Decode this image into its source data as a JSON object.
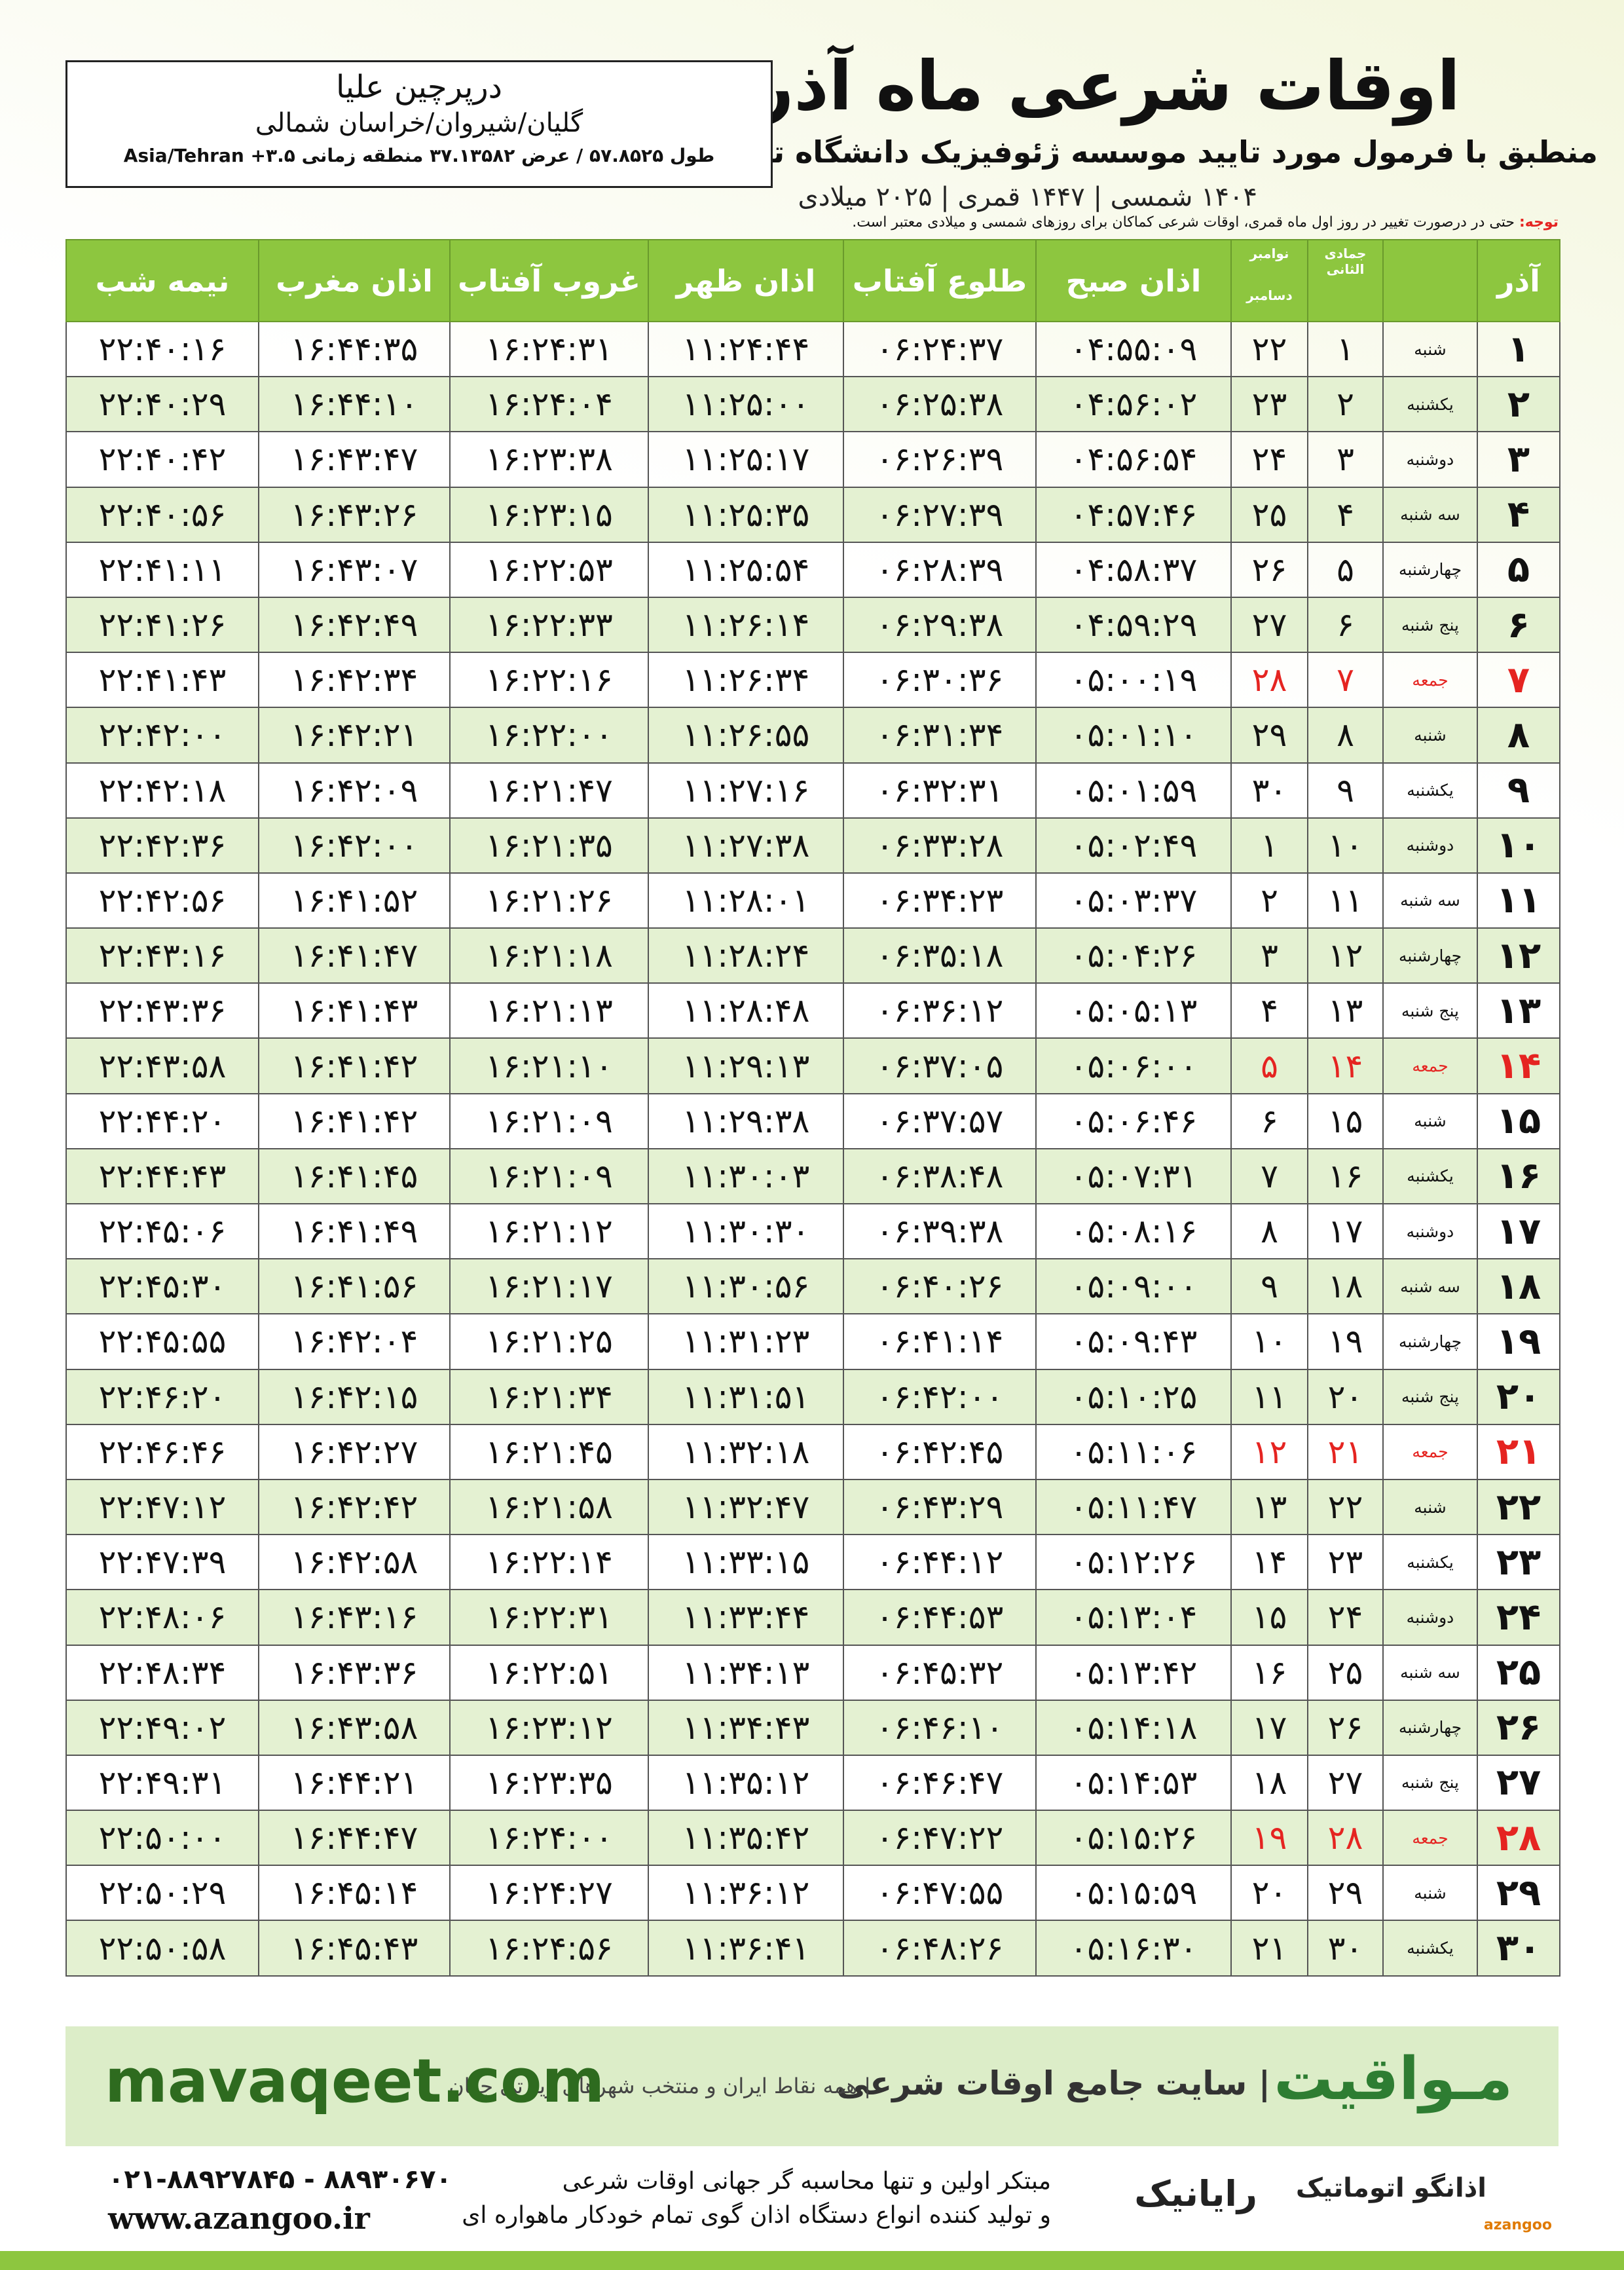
{
  "header": {
    "title": "اوقات شرعی ماه آذر",
    "subtitle": "منطبق با فرمول مورد تایید موسسه ژئوفیزیک دانشگاه تهران",
    "years": "۱۴۰۴ شمسی | ۱۴۴۷ قمری | ۲۰۲۵ میلادی"
  },
  "location": {
    "name": "درپرچین علیا",
    "region": "گلیان/شیروان/خراسان شمالی",
    "coords": "طول ۵۷.۸۵۲۵ / عرض ۳۷.۱۳۵۸۲ منطقه زمانی ۳.۵+ Asia/Tehran"
  },
  "note": {
    "label": "توجه:",
    "text": "حتی در درصورت تغییر در روز اول ماه قمری، اوقات شرعی کماکان برای روزهای شمسی و میلادی معتبر است."
  },
  "table": {
    "columns": {
      "day": "آذر",
      "qamari": "جمادی الثانی",
      "miladi": [
        "نوامبر",
        "دسامبر"
      ],
      "times": [
        "اذان صبح",
        "طلوع آفتاب",
        "اذان ظهر",
        "غروب آفتاب",
        "اذان مغرب",
        "نیمه شب"
      ]
    },
    "holiday_color": "#e52421",
    "holiday_rows": [
      6,
      13,
      20,
      27
    ],
    "rows": [
      [
        "۱",
        "شنبه",
        "۱",
        "۲۲",
        "۰۴:۵۵:۰۹",
        "۰۶:۲۴:۳۷",
        "۱۱:۲۴:۴۴",
        "۱۶:۲۴:۳۱",
        "۱۶:۴۴:۳۵",
        "۲۲:۴۰:۱۶"
      ],
      [
        "۲",
        "یکشنبه",
        "۲",
        "۲۳",
        "۰۴:۵۶:۰۲",
        "۰۶:۲۵:۳۸",
        "۱۱:۲۵:۰۰",
        "۱۶:۲۴:۰۴",
        "۱۶:۴۴:۱۰",
        "۲۲:۴۰:۲۹"
      ],
      [
        "۳",
        "دوشنبه",
        "۳",
        "۲۴",
        "۰۴:۵۶:۵۴",
        "۰۶:۲۶:۳۹",
        "۱۱:۲۵:۱۷",
        "۱۶:۲۳:۳۸",
        "۱۶:۴۳:۴۷",
        "۲۲:۴۰:۴۲"
      ],
      [
        "۴",
        "سه شنبه",
        "۴",
        "۲۵",
        "۰۴:۵۷:۴۶",
        "۰۶:۲۷:۳۹",
        "۱۱:۲۵:۳۵",
        "۱۶:۲۳:۱۵",
        "۱۶:۴۳:۲۶",
        "۲۲:۴۰:۵۶"
      ],
      [
        "۵",
        "چهارشنبه",
        "۵",
        "۲۶",
        "۰۴:۵۸:۳۷",
        "۰۶:۲۸:۳۹",
        "۱۱:۲۵:۵۴",
        "۱۶:۲۲:۵۳",
        "۱۶:۴۳:۰۷",
        "۲۲:۴۱:۱۱"
      ],
      [
        "۶",
        "پنج شنبه",
        "۶",
        "۲۷",
        "۰۴:۵۹:۲۹",
        "۰۶:۲۹:۳۸",
        "۱۱:۲۶:۱۴",
        "۱۶:۲۲:۳۳",
        "۱۶:۴۲:۴۹",
        "۲۲:۴۱:۲۶"
      ],
      [
        "۷",
        "جمعه",
        "۷",
        "۲۸",
        "۰۵:۰۰:۱۹",
        "۰۶:۳۰:۳۶",
        "۱۱:۲۶:۳۴",
        "۱۶:۲۲:۱۶",
        "۱۶:۴۲:۳۴",
        "۲۲:۴۱:۴۳"
      ],
      [
        "۸",
        "شنبه",
        "۸",
        "۲۹",
        "۰۵:۰۱:۱۰",
        "۰۶:۳۱:۳۴",
        "۱۱:۲۶:۵۵",
        "۱۶:۲۲:۰۰",
        "۱۶:۴۲:۲۱",
        "۲۲:۴۲:۰۰"
      ],
      [
        "۹",
        "یکشنبه",
        "۹",
        "۳۰",
        "۰۵:۰۱:۵۹",
        "۰۶:۳۲:۳۱",
        "۱۱:۲۷:۱۶",
        "۱۶:۲۱:۴۷",
        "۱۶:۴۲:۰۹",
        "۲۲:۴۲:۱۸"
      ],
      [
        "۱۰",
        "دوشنبه",
        "۱۰",
        "۱",
        "۰۵:۰۲:۴۹",
        "۰۶:۳۳:۲۸",
        "۱۱:۲۷:۳۸",
        "۱۶:۲۱:۳۵",
        "۱۶:۴۲:۰۰",
        "۲۲:۴۲:۳۶"
      ],
      [
        "۱۱",
        "سه شنبه",
        "۱۱",
        "۲",
        "۰۵:۰۳:۳۷",
        "۰۶:۳۴:۲۳",
        "۱۱:۲۸:۰۱",
        "۱۶:۲۱:۲۶",
        "۱۶:۴۱:۵۲",
        "۲۲:۴۲:۵۶"
      ],
      [
        "۱۲",
        "چهارشنبه",
        "۱۲",
        "۳",
        "۰۵:۰۴:۲۶",
        "۰۶:۳۵:۱۸",
        "۱۱:۲۸:۲۴",
        "۱۶:۲۱:۱۸",
        "۱۶:۴۱:۴۷",
        "۲۲:۴۳:۱۶"
      ],
      [
        "۱۳",
        "پنج شنبه",
        "۱۳",
        "۴",
        "۰۵:۰۵:۱۳",
        "۰۶:۳۶:۱۲",
        "۱۱:۲۸:۴۸",
        "۱۶:۲۱:۱۳",
        "۱۶:۴۱:۴۳",
        "۲۲:۴۳:۳۶"
      ],
      [
        "۱۴",
        "جمعه",
        "۱۴",
        "۵",
        "۰۵:۰۶:۰۰",
        "۰۶:۳۷:۰۵",
        "۱۱:۲۹:۱۳",
        "۱۶:۲۱:۱۰",
        "۱۶:۴۱:۴۲",
        "۲۲:۴۳:۵۸"
      ],
      [
        "۱۵",
        "شنبه",
        "۱۵",
        "۶",
        "۰۵:۰۶:۴۶",
        "۰۶:۳۷:۵۷",
        "۱۱:۲۹:۳۸",
        "۱۶:۲۱:۰۹",
        "۱۶:۴۱:۴۲",
        "۲۲:۴۴:۲۰"
      ],
      [
        "۱۶",
        "یکشنبه",
        "۱۶",
        "۷",
        "۰۵:۰۷:۳۱",
        "۰۶:۳۸:۴۸",
        "۱۱:۳۰:۰۳",
        "۱۶:۲۱:۰۹",
        "۱۶:۴۱:۴۵",
        "۲۲:۴۴:۴۳"
      ],
      [
        "۱۷",
        "دوشنبه",
        "۱۷",
        "۸",
        "۰۵:۰۸:۱۶",
        "۰۶:۳۹:۳۸",
        "۱۱:۳۰:۳۰",
        "۱۶:۲۱:۱۲",
        "۱۶:۴۱:۴۹",
        "۲۲:۴۵:۰۶"
      ],
      [
        "۱۸",
        "سه شنبه",
        "۱۸",
        "۹",
        "۰۵:۰۹:۰۰",
        "۰۶:۴۰:۲۶",
        "۱۱:۳۰:۵۶",
        "۱۶:۲۱:۱۷",
        "۱۶:۴۱:۵۶",
        "۲۲:۴۵:۳۰"
      ],
      [
        "۱۹",
        "چهارشنبه",
        "۱۹",
        "۱۰",
        "۰۵:۰۹:۴۳",
        "۰۶:۴۱:۱۴",
        "۱۱:۳۱:۲۳",
        "۱۶:۲۱:۲۵",
        "۱۶:۴۲:۰۴",
        "۲۲:۴۵:۵۵"
      ],
      [
        "۲۰",
        "پنج شنبه",
        "۲۰",
        "۱۱",
        "۰۵:۱۰:۲۵",
        "۰۶:۴۲:۰۰",
        "۱۱:۳۱:۵۱",
        "۱۶:۲۱:۳۴",
        "۱۶:۴۲:۱۵",
        "۲۲:۴۶:۲۰"
      ],
      [
        "۲۱",
        "جمعه",
        "۲۱",
        "۱۲",
        "۰۵:۱۱:۰۶",
        "۰۶:۴۲:۴۵",
        "۱۱:۳۲:۱۸",
        "۱۶:۲۱:۴۵",
        "۱۶:۴۲:۲۷",
        "۲۲:۴۶:۴۶"
      ],
      [
        "۲۲",
        "شنبه",
        "۲۲",
        "۱۳",
        "۰۵:۱۱:۴۷",
        "۰۶:۴۳:۲۹",
        "۱۱:۳۲:۴۷",
        "۱۶:۲۱:۵۸",
        "۱۶:۴۲:۴۲",
        "۲۲:۴۷:۱۲"
      ],
      [
        "۲۳",
        "یکشنبه",
        "۲۳",
        "۱۴",
        "۰۵:۱۲:۲۶",
        "۰۶:۴۴:۱۲",
        "۱۱:۳۳:۱۵",
        "۱۶:۲۲:۱۴",
        "۱۶:۴۲:۵۸",
        "۲۲:۴۷:۳۹"
      ],
      [
        "۲۴",
        "دوشنبه",
        "۲۴",
        "۱۵",
        "۰۵:۱۳:۰۴",
        "۰۶:۴۴:۵۳",
        "۱۱:۳۳:۴۴",
        "۱۶:۲۲:۳۱",
        "۱۶:۴۳:۱۶",
        "۲۲:۴۸:۰۶"
      ],
      [
        "۲۵",
        "سه شنبه",
        "۲۵",
        "۱۶",
        "۰۵:۱۳:۴۲",
        "۰۶:۴۵:۳۲",
        "۱۱:۳۴:۱۳",
        "۱۶:۲۲:۵۱",
        "۱۶:۴۳:۳۶",
        "۲۲:۴۸:۳۴"
      ],
      [
        "۲۶",
        "چهارشنبه",
        "۲۶",
        "۱۷",
        "۰۵:۱۴:۱۸",
        "۰۶:۴۶:۱۰",
        "۱۱:۳۴:۴۳",
        "۱۶:۲۳:۱۲",
        "۱۶:۴۳:۵۸",
        "۲۲:۴۹:۰۲"
      ],
      [
        "۲۷",
        "پنج شنبه",
        "۲۷",
        "۱۸",
        "۰۵:۱۴:۵۳",
        "۰۶:۴۶:۴۷",
        "۱۱:۳۵:۱۲",
        "۱۶:۲۳:۳۵",
        "۱۶:۴۴:۲۱",
        "۲۲:۴۹:۳۱"
      ],
      [
        "۲۸",
        "جمعه",
        "۲۸",
        "۱۹",
        "۰۵:۱۵:۲۶",
        "۰۶:۴۷:۲۲",
        "۱۱:۳۵:۴۲",
        "۱۶:۲۴:۰۰",
        "۱۶:۴۴:۴۷",
        "۲۲:۵۰:۰۰"
      ],
      [
        "۲۹",
        "شنبه",
        "۲۹",
        "۲۰",
        "۰۵:۱۵:۵۹",
        "۰۶:۴۷:۵۵",
        "۱۱:۳۶:۱۲",
        "۱۶:۲۴:۲۷",
        "۱۶:۴۵:۱۴",
        "۲۲:۵۰:۲۹"
      ],
      [
        "۳۰",
        "یکشنبه",
        "۳۰",
        "۲۱",
        "۰۵:۱۶:۳۰",
        "۰۶:۴۸:۲۶",
        "۱۱:۳۶:۴۱",
        "۱۶:۲۴:۵۶",
        "۱۶:۴۵:۴۳",
        "۲۲:۵۰:۵۸"
      ]
    ]
  },
  "footer": {
    "brand": "مـواقیت",
    "brand_text": "| سایت جامع اوقات شرعی",
    "brand_sub": "| همه نقاط ایران و منتخب شهرهای زیارتی جهان",
    "site": "mavaqeet.com",
    "phone": "۰۲۱-۸۸۹۲۷۸۴۵ - ۸۸۹۳۰۶۷۰",
    "www": "www.azangoo.ir",
    "line1": "مبتکر اولین و تنها محاسبه گر جهانی اوقات شرعی",
    "line2": "و تولید کننده انواع دستگاه اذان گوی تمام خودکار ماهواره ای",
    "logo1": "رایانیک",
    "logo2": "اذانگو اتوماتیک",
    "logo3": "azangoo"
  }
}
